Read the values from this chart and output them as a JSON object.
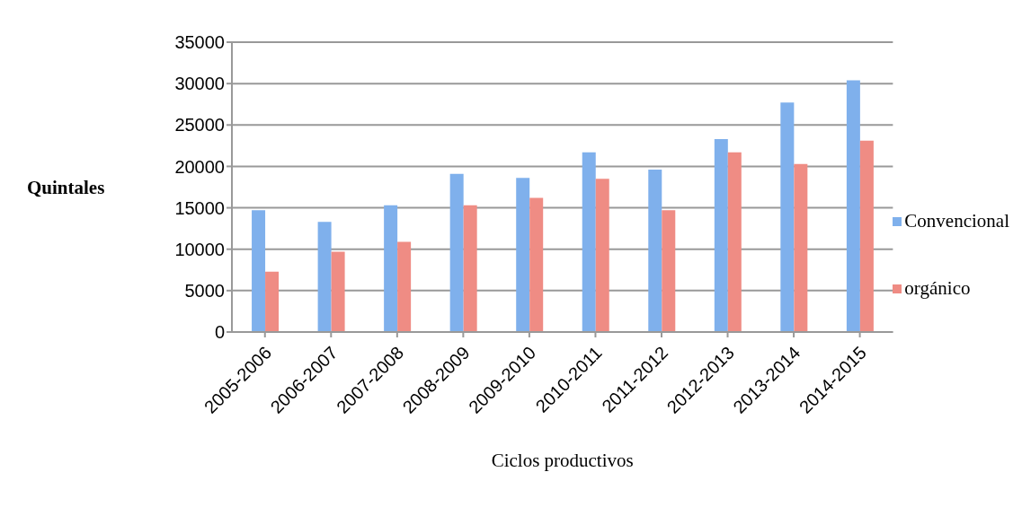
{
  "chart_data": {
    "type": "bar",
    "xlabel": "Ciclos productivos",
    "ylabel": "Quintales",
    "categories": [
      "2005-2006",
      "2006-2007",
      "2007-2008",
      "2008-2009",
      "2009-2010",
      "2010-2011",
      "2011-2012",
      "2012-2013",
      "2013-2014",
      "2014-2015"
    ],
    "series": [
      {
        "name": "Convencional",
        "color": "#7fb0ec",
        "values": [
          14700,
          13300,
          15300,
          19100,
          18600,
          21700,
          19600,
          23300,
          27700,
          30400
        ]
      },
      {
        "name": "orgánico",
        "color": "#ef8c84",
        "values": [
          7300,
          9700,
          10900,
          15300,
          16200,
          18500,
          14700,
          21700,
          20300,
          23100
        ]
      }
    ],
    "ylim": [
      0,
      35000
    ],
    "yticks": [
      0,
      5000,
      10000,
      15000,
      20000,
      25000,
      30000,
      35000
    ],
    "grid": "y",
    "legend": "right"
  }
}
